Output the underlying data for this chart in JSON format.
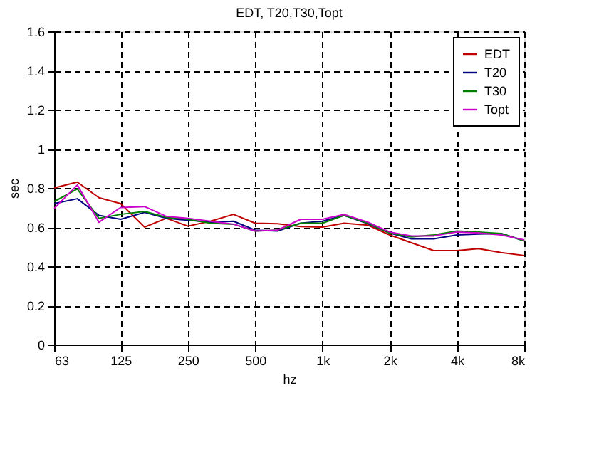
{
  "chart_data": {
    "type": "line",
    "title": "EDT, T20,T30,Topt",
    "xlabel": "hz",
    "ylabel": "sec",
    "x": [
      63,
      80,
      100,
      125,
      160,
      200,
      250,
      315,
      400,
      500,
      630,
      800,
      1000,
      1250,
      1600,
      2000,
      2500,
      3150,
      4000,
      5000,
      6300,
      8000
    ],
    "series": [
      {
        "name": "EDT",
        "color": "#c00000",
        "values": [
          0.8,
          0.83,
          0.75,
          0.72,
          0.6,
          0.645,
          0.605,
          0.63,
          0.665,
          0.62,
          0.617,
          0.603,
          0.6,
          0.62,
          0.61,
          0.56,
          0.52,
          0.48,
          0.48,
          0.49,
          0.47,
          0.455
        ]
      },
      {
        "name": "T20",
        "color": "#000080",
        "values": [
          0.72,
          0.745,
          0.66,
          0.64,
          0.675,
          0.645,
          0.635,
          0.625,
          0.63,
          0.585,
          0.58,
          0.62,
          0.63,
          0.66,
          0.617,
          0.57,
          0.54,
          0.54,
          0.56,
          0.565,
          0.567,
          0.53
        ]
      },
      {
        "name": "T30",
        "color": "#008000",
        "values": [
          0.73,
          0.795,
          0.645,
          0.665,
          0.68,
          0.65,
          0.64,
          0.62,
          0.615,
          0.58,
          0.585,
          0.62,
          0.62,
          0.66,
          0.62,
          0.57,
          0.55,
          0.56,
          0.58,
          0.575,
          0.567,
          0.53
        ]
      },
      {
        "name": "Topt",
        "color": "#cc00cc",
        "values": [
          0.695,
          0.815,
          0.625,
          0.7,
          0.705,
          0.655,
          0.645,
          0.63,
          0.615,
          0.58,
          0.585,
          0.64,
          0.64,
          0.665,
          0.625,
          0.575,
          0.555,
          0.555,
          0.575,
          0.57,
          0.56,
          0.535
        ]
      }
    ],
    "xlim": [
      63,
      8000
    ],
    "xticks": [
      63,
      125,
      250,
      500,
      {
        "value": 1000,
        "label": "1k"
      },
      {
        "value": 2000,
        "label": "2k"
      },
      {
        "value": 4000,
        "label": "4k"
      },
      {
        "value": 8000,
        "label": "8k"
      }
    ],
    "ylim": [
      0,
      1.6
    ],
    "yticks": [
      0,
      0.2,
      0.4,
      0.6,
      0.8,
      1,
      1.2,
      1.4,
      1.6
    ],
    "log": "x",
    "grid": true,
    "legend": "top right",
    "line_style": "solid",
    "marker": "none"
  }
}
